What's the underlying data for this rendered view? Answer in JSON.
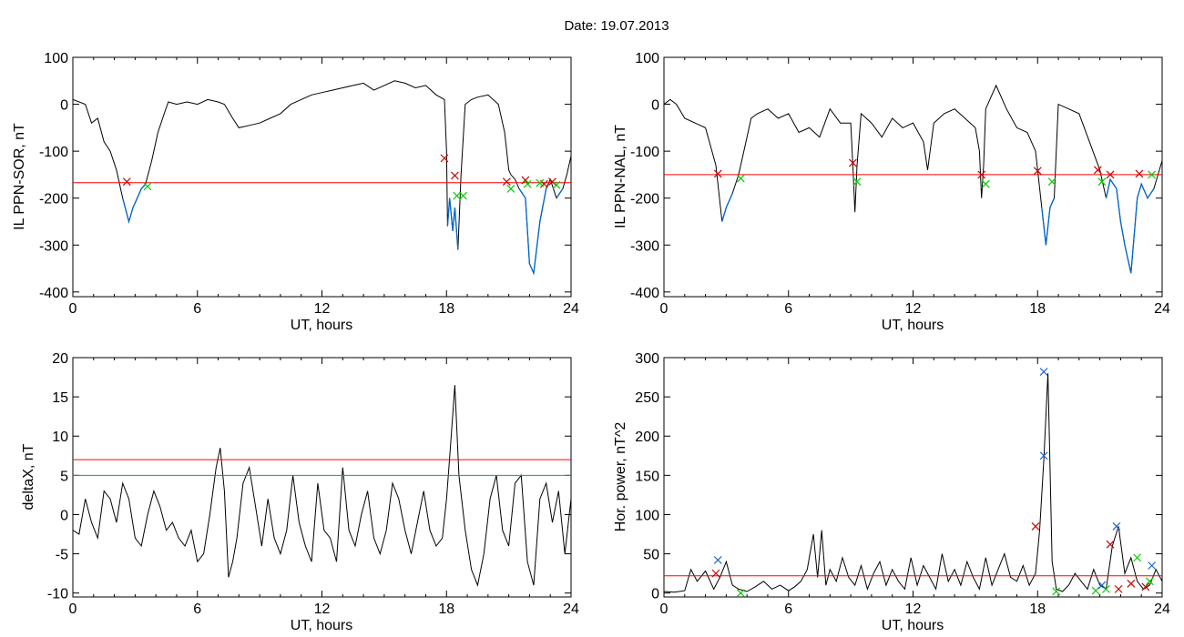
{
  "title": "Date:  19.07.2013",
  "colors": {
    "trace": "#000000",
    "threshold": "#ff0000",
    "blue": "#0066cc",
    "teal": "#0099aa",
    "start": "#cc0000",
    "end": "#00cc00",
    "peak": "#2266cc"
  },
  "chart_data": [
    {
      "id": "il-sor",
      "type": "line",
      "xlabel": "UT, hours",
      "ylabel": "IL PPN-SOR, nT",
      "xlim": [
        0,
        24
      ],
      "ylim": [
        -410,
        100
      ],
      "xticks": [
        0,
        6,
        12,
        18,
        24
      ],
      "yticks": [
        100,
        0,
        -100,
        -200,
        -300,
        -400
      ],
      "series": [
        {
          "role": "trace",
          "x": [
            0,
            0.6,
            0.9,
            1.2,
            1.5,
            1.8,
            2.1,
            2.4,
            2.7,
            2.9,
            3.1,
            3.3,
            3.5,
            3.8,
            4.1,
            4.4,
            4.6,
            5.0,
            5.5,
            6.0,
            6.5,
            7.0,
            7.3,
            7.7,
            8.0,
            8.5,
            9.0,
            9.5,
            10,
            10.5,
            11,
            11.5,
            12,
            12.5,
            13,
            13.5,
            14,
            14.5,
            15,
            15.5,
            16,
            16.5,
            17,
            17.5,
            17.9,
            18.0,
            18.05,
            18.15,
            18.3,
            18.4,
            18.55,
            18.7,
            18.9,
            19.2,
            19.5,
            20,
            20.5,
            20.8,
            21.0,
            21.1,
            21.3,
            21.5,
            21.8,
            22.0,
            22.2,
            22.5,
            22.8,
            23.0,
            23.3,
            23.6,
            23.8,
            24
          ],
          "y": [
            10,
            0,
            -40,
            -30,
            -80,
            -100,
            -140,
            -200,
            -250,
            -220,
            -200,
            -180,
            -170,
            -120,
            -60,
            -20,
            5,
            0,
            5,
            0,
            10,
            5,
            0,
            -30,
            -50,
            -45,
            -40,
            -30,
            -20,
            0,
            10,
            20,
            25,
            30,
            35,
            40,
            45,
            30,
            40,
            50,
            45,
            35,
            40,
            20,
            10,
            -100,
            -260,
            -200,
            -270,
            -220,
            -310,
            -150,
            0,
            10,
            15,
            20,
            0,
            -60,
            -140,
            -150,
            -160,
            -180,
            -200,
            -340,
            -360,
            -250,
            -180,
            -160,
            -200,
            -180,
            -150,
            -110
          ]
        },
        {
          "role": "threshold",
          "value": -167
        }
      ],
      "start_markers": [
        {
          "x": 2.6,
          "y": -165
        },
        {
          "x": 17.9,
          "y": -115
        },
        {
          "x": 18.4,
          "y": -152
        },
        {
          "x": 20.9,
          "y": -165
        },
        {
          "x": 21.8,
          "y": -162
        },
        {
          "x": 22.7,
          "y": -170
        },
        {
          "x": 23.1,
          "y": -165
        }
      ],
      "end_markers": [
        {
          "x": 3.6,
          "y": -175
        },
        {
          "x": 18.5,
          "y": -195
        },
        {
          "x": 18.8,
          "y": -195
        },
        {
          "x": 21.1,
          "y": -180
        },
        {
          "x": 21.9,
          "y": -170
        },
        {
          "x": 22.5,
          "y": -168
        },
        {
          "x": 23.3,
          "y": -172
        }
      ]
    },
    {
      "id": "il-nal",
      "type": "line",
      "xlabel": "UT, hours",
      "ylabel": "IL PPN-NAL, nT",
      "xlim": [
        0,
        24
      ],
      "ylim": [
        -410,
        100
      ],
      "xticks": [
        0,
        6,
        12,
        18,
        24
      ],
      "yticks": [
        100,
        0,
        -100,
        -200,
        -300,
        -400
      ],
      "series": [
        {
          "role": "trace",
          "x": [
            0,
            0.3,
            0.6,
            1.0,
            1.5,
            2.0,
            2.5,
            2.8,
            3.0,
            3.3,
            3.6,
            3.9,
            4.2,
            4.5,
            5,
            5.5,
            6,
            6.5,
            7,
            7.5,
            8,
            8.5,
            9.0,
            9.1,
            9.2,
            9.3,
            9.5,
            10,
            10.5,
            11,
            11.5,
            12,
            12.5,
            12.7,
            13,
            13.5,
            14,
            14.5,
            15,
            15.2,
            15.3,
            15.4,
            15.5,
            16,
            16.5,
            17,
            17.5,
            17.9,
            18.0,
            18.2,
            18.4,
            18.6,
            18.8,
            19,
            19.5,
            20,
            20.5,
            21,
            21.3,
            21.5,
            21.8,
            22,
            22.2,
            22.5,
            22.8,
            23.0,
            23.3,
            23.6,
            24
          ],
          "y": [
            0,
            10,
            0,
            -30,
            -40,
            -50,
            -130,
            -250,
            -220,
            -190,
            -150,
            -90,
            -30,
            -20,
            -10,
            -30,
            -20,
            -60,
            -50,
            -70,
            -10,
            -40,
            -40,
            -130,
            -230,
            -130,
            -20,
            -40,
            -70,
            -30,
            -50,
            -40,
            -80,
            -140,
            -40,
            -20,
            -10,
            -30,
            -50,
            -100,
            -200,
            -130,
            -10,
            40,
            -10,
            -50,
            -60,
            -100,
            -140,
            -220,
            -300,
            -220,
            -200,
            0,
            -10,
            -20,
            -80,
            -140,
            -200,
            -160,
            -180,
            -250,
            -300,
            -360,
            -200,
            -170,
            -200,
            -180,
            -120
          ]
        },
        {
          "role": "threshold",
          "value": -150
        }
      ],
      "start_markers": [
        {
          "x": 2.6,
          "y": -148
        },
        {
          "x": 9.1,
          "y": -125
        },
        {
          "x": 15.3,
          "y": -150
        },
        {
          "x": 18.0,
          "y": -142
        },
        {
          "x": 20.9,
          "y": -140
        },
        {
          "x": 21.5,
          "y": -150
        },
        {
          "x": 22.9,
          "y": -148
        }
      ],
      "end_markers": [
        {
          "x": 3.7,
          "y": -158
        },
        {
          "x": 9.3,
          "y": -165
        },
        {
          "x": 15.5,
          "y": -170
        },
        {
          "x": 18.7,
          "y": -165
        },
        {
          "x": 21.1,
          "y": -165
        },
        {
          "x": 23.5,
          "y": -150
        }
      ]
    },
    {
      "id": "deltax",
      "type": "line",
      "xlabel": "UT, hours",
      "ylabel": "deltaX, nT",
      "xlim": [
        0,
        24
      ],
      "ylim": [
        -10.5,
        20
      ],
      "xticks": [
        0,
        6,
        12,
        18,
        24
      ],
      "yticks": [
        20,
        15,
        10,
        5,
        0,
        -5,
        -10
      ],
      "series": [
        {
          "role": "trace",
          "x": [
            0,
            0.3,
            0.6,
            0.9,
            1.2,
            1.5,
            1.8,
            2.1,
            2.4,
            2.7,
            3.0,
            3.3,
            3.6,
            3.9,
            4.2,
            4.5,
            4.8,
            5.1,
            5.4,
            5.7,
            6.0,
            6.3,
            6.6,
            6.9,
            7.1,
            7.3,
            7.5,
            7.7,
            7.9,
            8.2,
            8.5,
            8.8,
            9.1,
            9.4,
            9.7,
            10.0,
            10.3,
            10.6,
            10.9,
            11.2,
            11.5,
            11.8,
            12.1,
            12.4,
            12.7,
            13.0,
            13.3,
            13.6,
            13.9,
            14.2,
            14.5,
            14.8,
            15.1,
            15.4,
            15.7,
            16.0,
            16.3,
            16.6,
            16.9,
            17.2,
            17.5,
            17.8,
            18.0,
            18.2,
            18.4,
            18.6,
            18.9,
            19.2,
            19.5,
            19.8,
            20.1,
            20.4,
            20.7,
            21.0,
            21.3,
            21.6,
            21.9,
            22.2,
            22.5,
            22.8,
            23.1,
            23.4,
            23.7,
            24
          ],
          "y": [
            -2,
            -2.5,
            2,
            -1,
            -3,
            3,
            2,
            -1,
            4,
            2,
            -3,
            -4,
            0,
            3,
            1,
            -2,
            -1,
            -3,
            -4,
            -2,
            -6,
            -5,
            0,
            6,
            8.5,
            3,
            -8,
            -6,
            -3,
            4,
            6,
            1,
            -4,
            2,
            -3,
            -5,
            -2,
            5,
            -1,
            -4,
            -6,
            4,
            -2,
            -3,
            -6,
            6,
            -2,
            -4,
            0,
            3,
            -3,
            -5,
            -2,
            4,
            2,
            -2,
            -5,
            -1,
            3,
            -2,
            -4,
            -3,
            2,
            9,
            16.5,
            5,
            -2,
            -7,
            -9,
            -5,
            2,
            5,
            -2,
            -4,
            4,
            5,
            -6,
            -9,
            2,
            4,
            -1,
            3,
            -5,
            2
          ]
        },
        {
          "role": "threshold",
          "value": 7
        },
        {
          "role": "threshold-blue",
          "value": 5
        }
      ]
    },
    {
      "id": "power",
      "type": "line",
      "xlabel": "UT, hours",
      "ylabel": "Hor. power, nT^2",
      "xlim": [
        0,
        24
      ],
      "ylim": [
        -5,
        300
      ],
      "xticks": [
        0,
        6,
        12,
        18,
        24
      ],
      "yticks": [
        300,
        250,
        200,
        150,
        100,
        50,
        0
      ],
      "series": [
        {
          "role": "trace",
          "x": [
            0,
            0.5,
            1.0,
            1.3,
            1.6,
            2.0,
            2.4,
            2.7,
            3.0,
            3.3,
            3.6,
            4.0,
            4.4,
            4.8,
            5.2,
            5.6,
            6.0,
            6.3,
            6.6,
            6.9,
            7.2,
            7.4,
            7.6,
            7.8,
            8.0,
            8.3,
            8.6,
            8.9,
            9.2,
            9.5,
            9.8,
            10.1,
            10.4,
            10.7,
            11.0,
            11.3,
            11.6,
            11.9,
            12.2,
            12.5,
            12.8,
            13.1,
            13.4,
            13.7,
            14.0,
            14.3,
            14.6,
            14.9,
            15.2,
            15.5,
            15.8,
            16.1,
            16.4,
            16.7,
            17.0,
            17.3,
            17.6,
            17.9,
            18.1,
            18.3,
            18.5,
            18.7,
            18.9,
            19.2,
            19.5,
            19.8,
            20.1,
            20.4,
            20.7,
            21.0,
            21.3,
            21.6,
            21.9,
            22.2,
            22.5,
            22.8,
            23.1,
            23.4,
            23.7,
            24
          ],
          "y": [
            2,
            1,
            3,
            30,
            15,
            28,
            5,
            20,
            40,
            10,
            5,
            2,
            8,
            15,
            5,
            10,
            3,
            8,
            15,
            30,
            75,
            20,
            80,
            10,
            30,
            15,
            45,
            20,
            10,
            35,
            5,
            25,
            40,
            10,
            30,
            15,
            5,
            45,
            10,
            35,
            20,
            5,
            50,
            15,
            30,
            10,
            40,
            20,
            5,
            45,
            10,
            30,
            50,
            20,
            15,
            35,
            10,
            25,
            80,
            170,
            280,
            40,
            5,
            2,
            10,
            25,
            15,
            5,
            30,
            10,
            5,
            60,
            85,
            25,
            45,
            15,
            5,
            10,
            30,
            15
          ]
        },
        {
          "role": "threshold",
          "value": 22
        }
      ],
      "start_markers": [
        {
          "x": 2.5,
          "y": 25
        },
        {
          "x": 17.9,
          "y": 85
        },
        {
          "x": 21.5,
          "y": 62
        },
        {
          "x": 21.9,
          "y": 5
        },
        {
          "x": 22.5,
          "y": 12
        },
        {
          "x": 23.2,
          "y": 8
        }
      ],
      "end_markers": [
        {
          "x": 3.7,
          "y": 0
        },
        {
          "x": 18.9,
          "y": 2
        },
        {
          "x": 20.8,
          "y": 3
        },
        {
          "x": 21.3,
          "y": 5
        },
        {
          "x": 22.8,
          "y": 45
        },
        {
          "x": 23.4,
          "y": 15
        }
      ],
      "peak_markers": [
        {
          "x": 2.6,
          "y": 42
        },
        {
          "x": 18.3,
          "y": 175
        },
        {
          "x": 18.3,
          "y": 282
        },
        {
          "x": 21.1,
          "y": 10
        },
        {
          "x": 21.8,
          "y": 85
        },
        {
          "x": 23.5,
          "y": 35
        }
      ]
    }
  ]
}
